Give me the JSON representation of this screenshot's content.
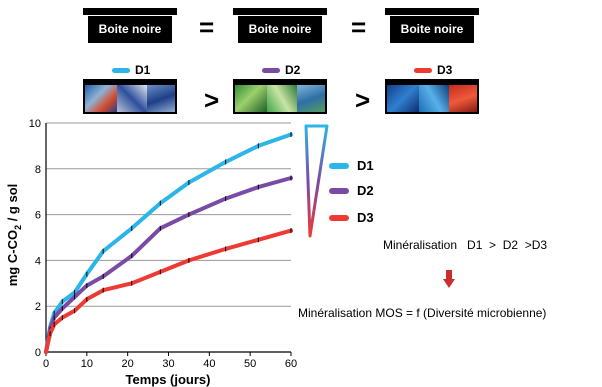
{
  "header": {
    "box_label": "Boite noire",
    "equals": "=",
    "greater": ">"
  },
  "samples": [
    {
      "label": "D1",
      "color": "#2bb5e8"
    },
    {
      "label": "D2",
      "color": "#7a4ba5"
    },
    {
      "label": "D3",
      "color": "#ef3a34"
    }
  ],
  "legend": [
    {
      "label": "D1",
      "color": "#2bb5e8"
    },
    {
      "label": "D2",
      "color": "#7a4ba5"
    },
    {
      "label": "D3",
      "color": "#ef3a34"
    }
  ],
  "notes": {
    "mineralisation": "Minéralisation   D1  >  D2  >D3",
    "conclusion": "Minéralisation MOS = f (Diversité microbienne)"
  },
  "chart_data": {
    "type": "line",
    "title": "",
    "xlabel": "Temps (jours)",
    "ylabel": "mg C-CO2 / g sol",
    "xlim": [
      0,
      60
    ],
    "ylim": [
      0,
      10
    ],
    "xticks": [
      0,
      10,
      20,
      30,
      40,
      50,
      60
    ],
    "yticks": [
      0,
      2,
      4,
      6,
      8,
      10
    ],
    "grid": "horizontal",
    "legend_position": "right",
    "series": [
      {
        "name": "D1",
        "color": "#2bb5e8",
        "x": [
          0,
          1,
          2,
          4,
          7,
          10,
          14,
          21,
          28,
          35,
          44,
          52,
          60
        ],
        "y": [
          0,
          1.1,
          1.7,
          2.2,
          2.6,
          3.4,
          4.4,
          5.4,
          6.5,
          7.4,
          8.3,
          9.0,
          9.5
        ]
      },
      {
        "name": "D2",
        "color": "#7a4ba5",
        "x": [
          0,
          1,
          2,
          4,
          7,
          10,
          14,
          21,
          28,
          35,
          44,
          52,
          60
        ],
        "y": [
          0,
          1.0,
          1.5,
          1.9,
          2.4,
          2.9,
          3.3,
          4.2,
          5.4,
          6.0,
          6.7,
          7.2,
          7.6
        ]
      },
      {
        "name": "D3",
        "color": "#ef3a34",
        "x": [
          0,
          1,
          2,
          4,
          7,
          10,
          14,
          21,
          28,
          35,
          44,
          52,
          60
        ],
        "y": [
          0,
          0.8,
          1.2,
          1.5,
          1.8,
          2.3,
          2.7,
          3.0,
          3.5,
          4.0,
          4.5,
          4.9,
          5.3
        ]
      }
    ]
  }
}
